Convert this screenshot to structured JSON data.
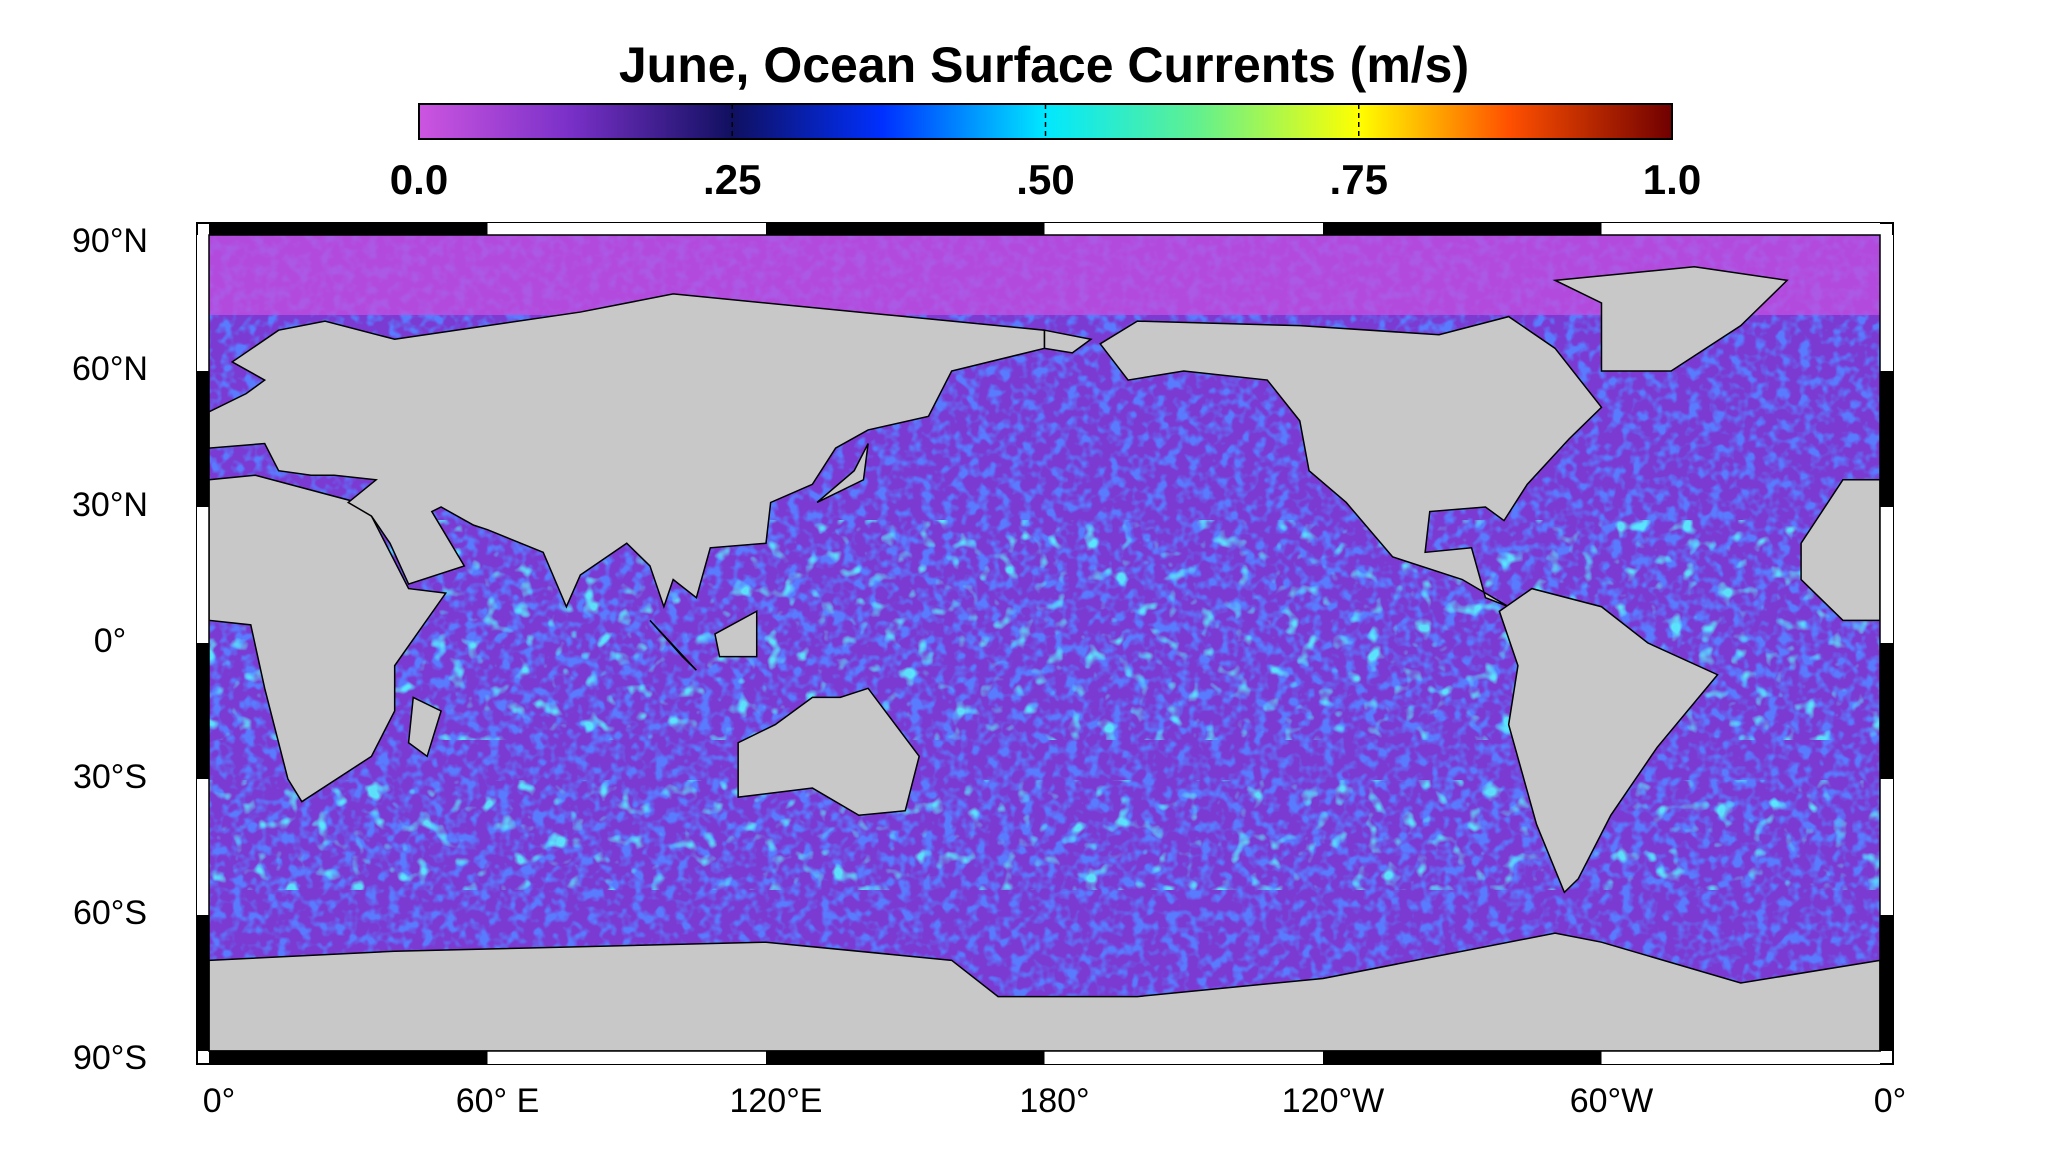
{
  "title": "June, Ocean Surface Currents (m/s)",
  "colorbar": {
    "range": [
      0,
      1
    ],
    "ticks": [
      {
        "value": 0,
        "label": "0.0"
      },
      {
        "value": 0.25,
        "label": ".25"
      },
      {
        "value": 0.5,
        "label": ".50"
      },
      {
        "value": 0.75,
        "label": ".75"
      },
      {
        "value": 1,
        "label": "1.0"
      }
    ]
  },
  "map": {
    "lat_labels": [
      "90°N",
      "60°N",
      "30°N",
      "0°",
      "30°S",
      "60°S",
      "90°S"
    ],
    "lon_labels": [
      "0°",
      "60° E",
      "120°E",
      "180°",
      "120°W",
      "60°W",
      "0°"
    ]
  }
}
